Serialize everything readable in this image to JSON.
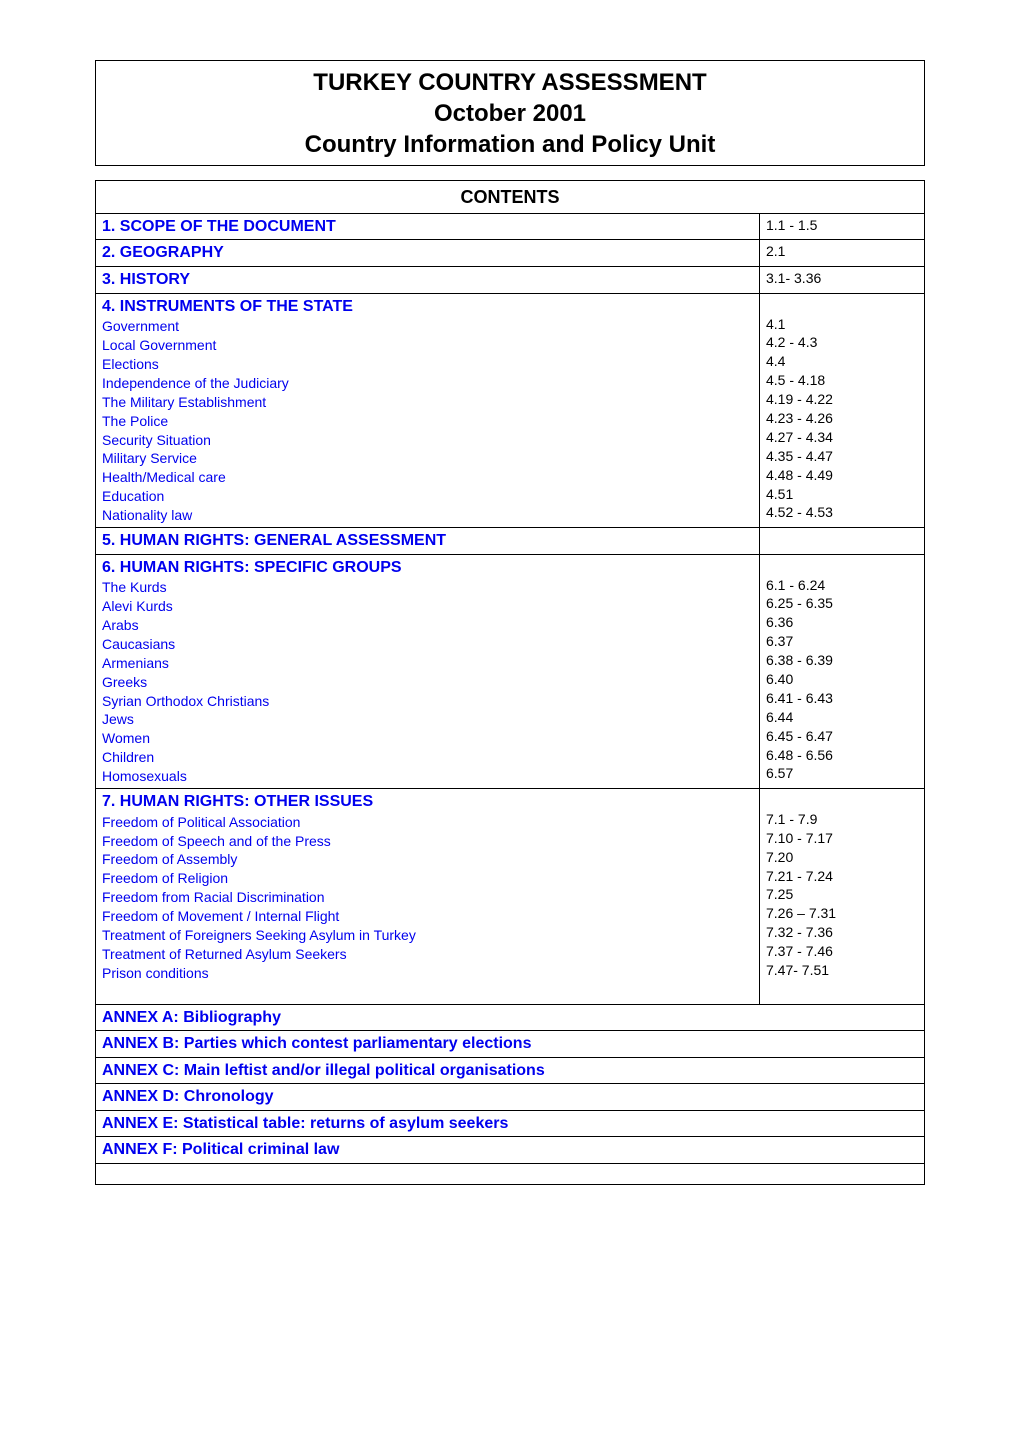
{
  "title": {
    "line1": "TURKEY COUNTRY ASSESSMENT",
    "line2": "October 2001",
    "line3": "Country Information and Policy Unit"
  },
  "contents_heading": "CONTENTS",
  "colors": {
    "link": "#0000ee",
    "text": "#000000",
    "border": "#000000",
    "background": "#ffffff"
  },
  "fonts": {
    "title_size_pt": 18,
    "section_size_pt": 12,
    "body_size_pt": 10.5,
    "contents_heading_size_pt": 14,
    "annex_size_pt": 12
  },
  "rows": [
    {
      "left_title": "1. SCOPE OF THE DOCUMENT",
      "left_items": [],
      "right": "1.1 - 1.5"
    },
    {
      "left_title": "2. GEOGRAPHY",
      "left_items": [],
      "right": "2.1"
    },
    {
      "left_title": "3. HISTORY",
      "left_items": [],
      "right": "3.1- 3.36"
    },
    {
      "left_title": "4. INSTRUMENTS OF THE STATE",
      "left_items": [
        "Government",
        "Local Government",
        "Elections",
        "Independence of the Judiciary",
        "The Military Establishment",
        "The Police",
        "Security Situation",
        "Military Service",
        "Health/Medical care",
        "Education",
        "Nationality law"
      ],
      "right_lines": [
        "",
        "4.1",
        "4.2 - 4.3",
        "4.4",
        "4.5 - 4.18",
        "4.19 - 4.22",
        "4.23 - 4.26",
        "4.27 - 4.34",
        "4.35 - 4.47",
        "4.48 - 4.49",
        "4.51",
        "4.52 - 4.53"
      ]
    },
    {
      "left_title": "5. HUMAN RIGHTS: GENERAL ASSESSMENT",
      "left_items": [],
      "right": ""
    },
    {
      "left_title": "6. HUMAN RIGHTS: SPECIFIC GROUPS",
      "left_items": [
        "The Kurds",
        "Alevi Kurds",
        "Arabs",
        "Caucasians",
        "Armenians",
        "Greeks",
        "Syrian Orthodox Christians",
        "Jews",
        "Women",
        "Children",
        "Homosexuals"
      ],
      "right_lines": [
        "",
        "6.1 - 6.24",
        "6.25 - 6.35",
        "6.36",
        "6.37",
        "6.38 - 6.39",
        "6.40",
        "6.41 - 6.43",
        "6.44",
        "6.45 - 6.47",
        "6.48 - 6.56",
        "6.57"
      ]
    },
    {
      "left_title": "7. HUMAN RIGHTS: OTHER ISSUES",
      "left_items": [
        "Freedom of Political Association",
        "Freedom of Speech and of the Press",
        "Freedom of Assembly",
        "Freedom of Religion",
        "Freedom from Racial Discrimination",
        "Freedom of Movement / Internal Flight",
        "Treatment of Foreigners Seeking Asylum in Turkey",
        "Treatment of Returned Asylum Seekers",
        "Prison conditions"
      ],
      "right_lines": [
        "",
        "7.1 - 7.9",
        "7.10 - 7.17",
        "7.20",
        "7.21 - 7.24",
        "7.25",
        "7.26 – 7.31",
        "7.32 - 7.36",
        "7.37 - 7.46",
        "7.47- 7.51"
      ],
      "trailing_blank": true
    }
  ],
  "annex_rows": [
    "ANNEX A: Bibliography",
    "ANNEX B: Parties which contest parliamentary elections",
    "ANNEX C: Main leftist and/or illegal political organisations",
    "ANNEX D: Chronology",
    "ANNEX E: Statistical table: returns of asylum seekers",
    "ANNEX F: Political criminal law"
  ]
}
